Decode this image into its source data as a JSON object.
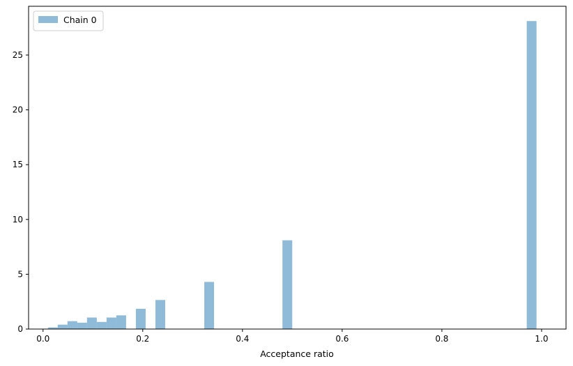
{
  "chart_data": {
    "type": "bar",
    "title": "",
    "xlabel": "Acceptance ratio",
    "ylabel": "",
    "xlim": [
      -0.029,
      1.049
    ],
    "ylim": [
      0,
      29.45
    ],
    "xticks": [
      0.0,
      0.2,
      0.4,
      0.6,
      0.8,
      1.0
    ],
    "xtick_labels": [
      "0.0",
      "0.2",
      "0.4",
      "0.6",
      "0.8",
      "1.0"
    ],
    "yticks": [
      0,
      5,
      10,
      15,
      20,
      25
    ],
    "ytick_labels": [
      "0",
      "5",
      "10",
      "15",
      "20",
      "25"
    ],
    "bin_width": 0.0196,
    "grid": false,
    "legend_position": "top-left",
    "bar_color": "#1f77b4",
    "bar_opacity": 0.5,
    "series": [
      {
        "name": "Chain 0",
        "bins": [
          {
            "x": 0.0196,
            "height": 0.15
          },
          {
            "x": 0.0392,
            "height": 0.4
          },
          {
            "x": 0.0588,
            "height": 0.72
          },
          {
            "x": 0.0784,
            "height": 0.58
          },
          {
            "x": 0.098,
            "height": 1.05
          },
          {
            "x": 0.1176,
            "height": 0.65
          },
          {
            "x": 0.1372,
            "height": 1.05
          },
          {
            "x": 0.1568,
            "height": 1.25
          },
          {
            "x": 0.196,
            "height": 1.85
          },
          {
            "x": 0.2352,
            "height": 2.65
          },
          {
            "x": 0.3332,
            "height": 4.3
          },
          {
            "x": 0.49,
            "height": 8.1
          },
          {
            "x": 0.98,
            "height": 28.1
          }
        ]
      }
    ]
  }
}
